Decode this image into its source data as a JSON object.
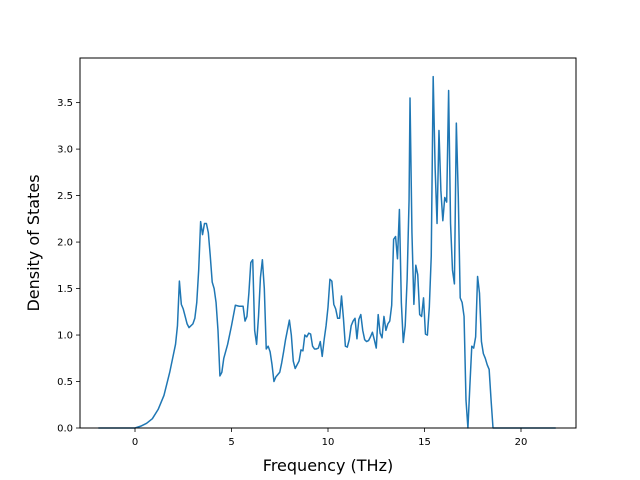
{
  "chart_data": {
    "type": "line",
    "title": "",
    "xlabel": "Frequency (THz)",
    "ylabel": "Density of States",
    "xlim": [
      -2.85,
      22.85
    ],
    "ylim": [
      0.0,
      3.98
    ],
    "grid": false,
    "legend": "none",
    "xticks": [
      0,
      5,
      10,
      15,
      20
    ],
    "xtick_labels": [
      "0",
      "5",
      "10",
      "15",
      "20"
    ],
    "yticks": [
      0.0,
      0.5,
      1.0,
      1.5,
      2.0,
      2.5,
      3.0,
      3.5
    ],
    "ytick_labels": [
      "0.0",
      "0.5",
      "1.0",
      "1.5",
      "2.0",
      "2.5",
      "3.0",
      "3.5"
    ],
    "series": [
      {
        "color": "#1f77b4",
        "points": [
          [
            -1.9,
            0.0
          ],
          [
            -1.0,
            0.0
          ],
          [
            0.0,
            0.0
          ],
          [
            0.3,
            0.02
          ],
          [
            0.6,
            0.05
          ],
          [
            0.9,
            0.1
          ],
          [
            1.2,
            0.2
          ],
          [
            1.5,
            0.35
          ],
          [
            1.8,
            0.6
          ],
          [
            2.0,
            0.8
          ],
          [
            2.1,
            0.9
          ],
          [
            2.2,
            1.1
          ],
          [
            2.3,
            1.58
          ],
          [
            2.4,
            1.33
          ],
          [
            2.5,
            1.28
          ],
          [
            2.6,
            1.2
          ],
          [
            2.7,
            1.12
          ],
          [
            2.8,
            1.08
          ],
          [
            3.0,
            1.12
          ],
          [
            3.1,
            1.18
          ],
          [
            3.2,
            1.35
          ],
          [
            3.3,
            1.7
          ],
          [
            3.4,
            2.22
          ],
          [
            3.5,
            2.08
          ],
          [
            3.6,
            2.2
          ],
          [
            3.7,
            2.2
          ],
          [
            3.8,
            2.1
          ],
          [
            3.9,
            1.85
          ],
          [
            4.0,
            1.57
          ],
          [
            4.1,
            1.5
          ],
          [
            4.2,
            1.35
          ],
          [
            4.3,
            1.05
          ],
          [
            4.4,
            0.56
          ],
          [
            4.5,
            0.6
          ],
          [
            4.6,
            0.75
          ],
          [
            4.8,
            0.9
          ],
          [
            5.0,
            1.1
          ],
          [
            5.2,
            1.32
          ],
          [
            5.4,
            1.31
          ],
          [
            5.6,
            1.31
          ],
          [
            5.7,
            1.15
          ],
          [
            5.8,
            1.2
          ],
          [
            5.9,
            1.45
          ],
          [
            6.0,
            1.78
          ],
          [
            6.1,
            1.81
          ],
          [
            6.2,
            1.05
          ],
          [
            6.3,
            0.9
          ],
          [
            6.4,
            1.2
          ],
          [
            6.5,
            1.62
          ],
          [
            6.6,
            1.81
          ],
          [
            6.7,
            1.5
          ],
          [
            6.8,
            0.85
          ],
          [
            6.9,
            0.88
          ],
          [
            7.0,
            0.82
          ],
          [
            7.1,
            0.68
          ],
          [
            7.2,
            0.5
          ],
          [
            7.3,
            0.55
          ],
          [
            7.5,
            0.6
          ],
          [
            7.6,
            0.7
          ],
          [
            7.7,
            0.82
          ],
          [
            7.8,
            0.95
          ],
          [
            8.0,
            1.16
          ],
          [
            8.1,
            1.0
          ],
          [
            8.2,
            0.72
          ],
          [
            8.3,
            0.64
          ],
          [
            8.4,
            0.68
          ],
          [
            8.5,
            0.72
          ],
          [
            8.6,
            0.84
          ],
          [
            8.7,
            0.83
          ],
          [
            8.8,
            1.0
          ],
          [
            8.9,
            0.98
          ],
          [
            9.0,
            1.02
          ],
          [
            9.1,
            1.01
          ],
          [
            9.2,
            0.88
          ],
          [
            9.3,
            0.85
          ],
          [
            9.4,
            0.85
          ],
          [
            9.5,
            0.86
          ],
          [
            9.6,
            0.93
          ],
          [
            9.7,
            0.77
          ],
          [
            9.8,
            0.95
          ],
          [
            9.9,
            1.1
          ],
          [
            10.0,
            1.3
          ],
          [
            10.1,
            1.6
          ],
          [
            10.2,
            1.58
          ],
          [
            10.3,
            1.33
          ],
          [
            10.4,
            1.28
          ],
          [
            10.5,
            1.18
          ],
          [
            10.6,
            1.18
          ],
          [
            10.7,
            1.42
          ],
          [
            10.8,
            1.18
          ],
          [
            10.9,
            0.88
          ],
          [
            11.0,
            0.87
          ],
          [
            11.1,
            0.95
          ],
          [
            11.2,
            1.1
          ],
          [
            11.3,
            1.15
          ],
          [
            11.4,
            1.18
          ],
          [
            11.5,
            0.96
          ],
          [
            11.6,
            1.17
          ],
          [
            11.7,
            1.22
          ],
          [
            11.8,
            1.05
          ],
          [
            11.9,
            0.95
          ],
          [
            12.0,
            0.93
          ],
          [
            12.1,
            0.94
          ],
          [
            12.2,
            0.98
          ],
          [
            12.3,
            1.03
          ],
          [
            12.4,
            0.95
          ],
          [
            12.5,
            0.86
          ],
          [
            12.6,
            1.22
          ],
          [
            12.7,
            1.02
          ],
          [
            12.8,
            0.97
          ],
          [
            12.9,
            1.2
          ],
          [
            13.0,
            1.05
          ],
          [
            13.1,
            1.12
          ],
          [
            13.2,
            1.15
          ],
          [
            13.3,
            1.32
          ],
          [
            13.4,
            2.03
          ],
          [
            13.5,
            2.06
          ],
          [
            13.6,
            1.82
          ],
          [
            13.7,
            2.35
          ],
          [
            13.8,
            1.35
          ],
          [
            13.9,
            0.92
          ],
          [
            14.0,
            1.1
          ],
          [
            14.1,
            1.6
          ],
          [
            14.2,
            2.45
          ],
          [
            14.25,
            3.55
          ],
          [
            14.35,
            2.1
          ],
          [
            14.45,
            1.33
          ],
          [
            14.55,
            1.75
          ],
          [
            14.65,
            1.65
          ],
          [
            14.75,
            1.22
          ],
          [
            14.85,
            1.2
          ],
          [
            14.95,
            1.4
          ],
          [
            15.05,
            1.01
          ],
          [
            15.15,
            1.0
          ],
          [
            15.25,
            1.3
          ],
          [
            15.35,
            1.85
          ],
          [
            15.45,
            3.78
          ],
          [
            15.55,
            2.8
          ],
          [
            15.65,
            2.2
          ],
          [
            15.75,
            3.2
          ],
          [
            15.85,
            2.55
          ],
          [
            15.95,
            2.23
          ],
          [
            16.05,
            2.48
          ],
          [
            16.15,
            2.43
          ],
          [
            16.25,
            3.63
          ],
          [
            16.35,
            2.2
          ],
          [
            16.45,
            1.7
          ],
          [
            16.55,
            1.55
          ],
          [
            16.65,
            3.28
          ],
          [
            16.75,
            2.5
          ],
          [
            16.85,
            1.4
          ],
          [
            16.95,
            1.35
          ],
          [
            17.05,
            1.2
          ],
          [
            17.15,
            0.3
          ],
          [
            17.25,
            0.0
          ],
          [
            17.35,
            0.45
          ],
          [
            17.45,
            0.88
          ],
          [
            17.55,
            0.86
          ],
          [
            17.65,
            0.98
          ],
          [
            17.75,
            1.63
          ],
          [
            17.85,
            1.45
          ],
          [
            17.95,
            0.93
          ],
          [
            18.05,
            0.8
          ],
          [
            18.15,
            0.75
          ],
          [
            18.25,
            0.68
          ],
          [
            18.35,
            0.63
          ],
          [
            18.45,
            0.3
          ],
          [
            18.55,
            0.0
          ],
          [
            19.0,
            0.0
          ],
          [
            20.0,
            0.0
          ],
          [
            21.8,
            0.0
          ]
        ]
      }
    ]
  }
}
